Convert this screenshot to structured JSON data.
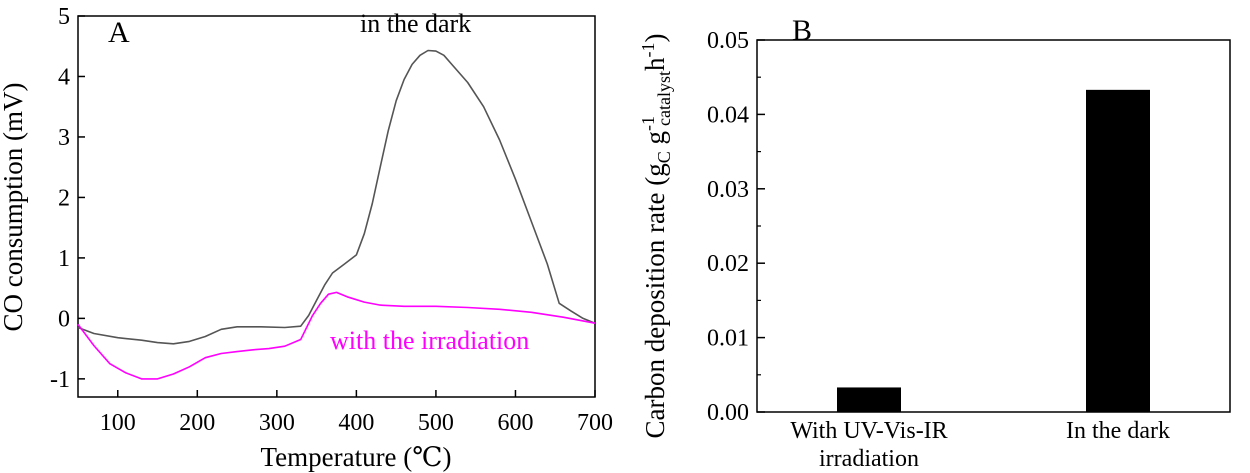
{
  "chart_data": [
    {
      "type": "line",
      "panel_label": "A",
      "xlabel": "Temperature (℃)",
      "ylabel": "CO consumption (mV)",
      "xlim": [
        50,
        700
      ],
      "ylim": [
        -1.3,
        5
      ],
      "x_ticks": [
        "100",
        "200",
        "300",
        "400",
        "500",
        "600",
        "700"
      ],
      "y_ticks": [
        "-1",
        "0",
        "1",
        "2",
        "3",
        "4",
        "5"
      ],
      "grid": false,
      "series": [
        {
          "name": "in the dark",
          "color": "#555555",
          "x": [
            50,
            70,
            100,
            130,
            150,
            170,
            190,
            210,
            230,
            250,
            280,
            310,
            330,
            340,
            350,
            360,
            370,
            385,
            400,
            410,
            420,
            430,
            440,
            450,
            460,
            470,
            480,
            490,
            500,
            510,
            520,
            540,
            560,
            580,
            600,
            620,
            640,
            655,
            670,
            685,
            700
          ],
          "y": [
            -0.15,
            -0.25,
            -0.32,
            -0.36,
            -0.4,
            -0.42,
            -0.38,
            -0.3,
            -0.18,
            -0.14,
            -0.14,
            -0.15,
            -0.13,
            0.05,
            0.3,
            0.55,
            0.75,
            0.9,
            1.05,
            1.4,
            1.9,
            2.5,
            3.1,
            3.6,
            3.95,
            4.2,
            4.35,
            4.43,
            4.42,
            4.35,
            4.2,
            3.9,
            3.5,
            2.95,
            2.3,
            1.6,
            0.9,
            0.25,
            0.12,
            0.0,
            -0.08
          ]
        },
        {
          "name": "with the irradiation",
          "color": "#ff00ff",
          "x": [
            50,
            70,
            90,
            110,
            130,
            150,
            170,
            190,
            210,
            230,
            250,
            270,
            290,
            310,
            330,
            345,
            355,
            365,
            375,
            390,
            410,
            430,
            460,
            500,
            540,
            580,
            620,
            660,
            700
          ],
          "y": [
            -0.1,
            -0.45,
            -0.75,
            -0.9,
            -1.0,
            -1.0,
            -0.92,
            -0.8,
            -0.65,
            -0.58,
            -0.55,
            -0.52,
            -0.5,
            -0.46,
            -0.35,
            0.05,
            0.25,
            0.4,
            0.43,
            0.35,
            0.27,
            0.22,
            0.2,
            0.2,
            0.18,
            0.15,
            0.1,
            0.02,
            -0.08
          ]
        }
      ]
    },
    {
      "type": "bar",
      "panel_label": "B",
      "categories": [
        "With UV-Vis-IR irradiation",
        "In the dark"
      ],
      "category_lines": [
        [
          "With UV-Vis-IR",
          "irradiation"
        ],
        [
          "In the dark"
        ]
      ],
      "values": [
        0.0033,
        0.0433
      ],
      "bar_color": "#000000",
      "ylabel_parts": {
        "main": "Carbon deposition rate (g",
        "sub1": "C",
        "mid": " g",
        "sup1": "-1",
        "sub2": "catalyst",
        "mid2": "h",
        "sup2": "-1",
        "end": ")"
      },
      "ylim": [
        0,
        0.05
      ],
      "y_ticks": [
        "0.00",
        "0.01",
        "0.02",
        "0.03",
        "0.04",
        "0.05"
      ],
      "grid": false
    }
  ]
}
